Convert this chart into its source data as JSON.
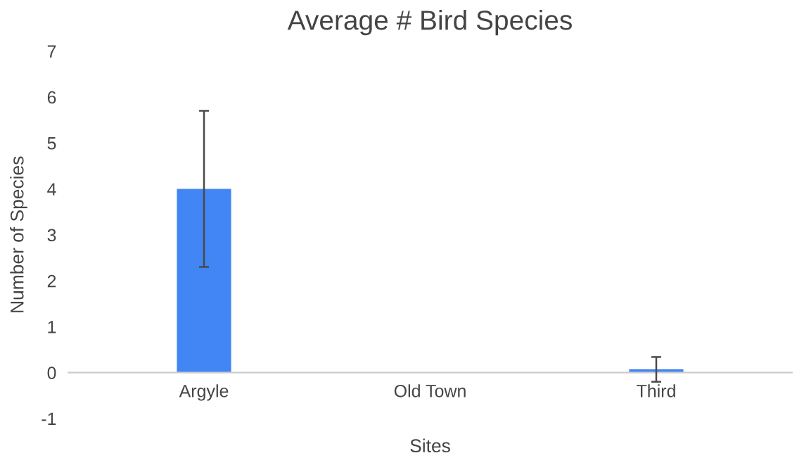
{
  "chart_data": {
    "type": "bar",
    "title": "Average # Bird Species",
    "xlabel": "Sites",
    "ylabel": "Number of Species",
    "categories": [
      "Argyle",
      "Old Town",
      "Third"
    ],
    "values": [
      4.0,
      0,
      0.07
    ],
    "errors": [
      1.7,
      null,
      0.27
    ],
    "color": "#4285f4",
    "ylim": [
      -1,
      7
    ],
    "yticks": [
      -1,
      0,
      1,
      2,
      3,
      4,
      5,
      6,
      7
    ],
    "grid": false
  }
}
